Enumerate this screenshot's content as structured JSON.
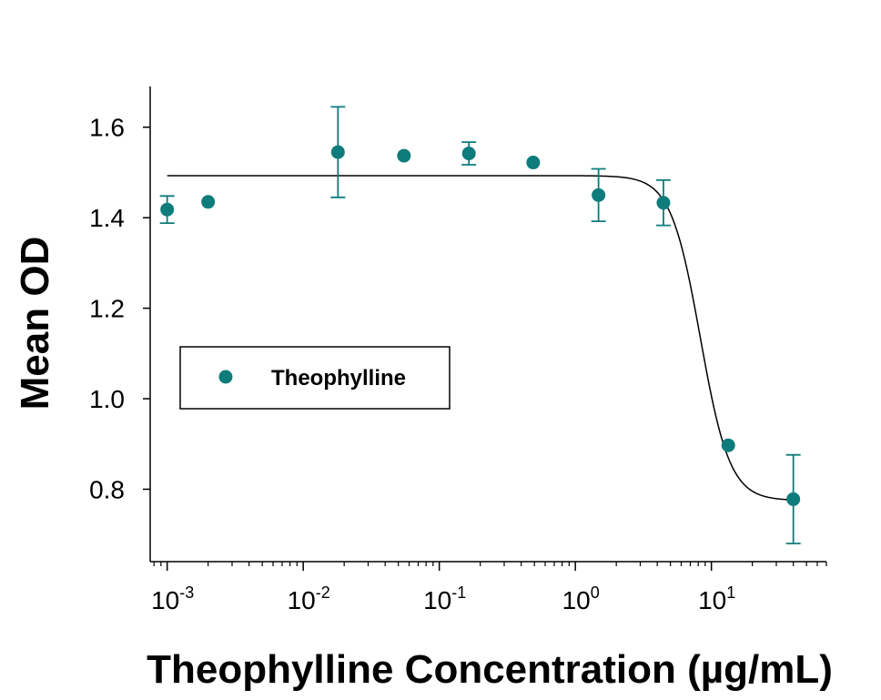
{
  "colors": {
    "series": "#0e7c7b",
    "axis": "#000000",
    "fit_line": "#000000"
  },
  "chart_data": {
    "type": "scatter",
    "xlabel": "Theophylline Concentration (µg/mL)",
    "ylabel": "Mean OD",
    "x_scale": "log",
    "x_ticks": [
      {
        "value": 0.001,
        "base": "10",
        "exp": "-3"
      },
      {
        "value": 0.01,
        "base": "10",
        "exp": "-2"
      },
      {
        "value": 0.1,
        "base": "10",
        "exp": "-1"
      },
      {
        "value": 1,
        "base": "10",
        "exp": "0"
      },
      {
        "value": 10,
        "base": "10",
        "exp": "1"
      }
    ],
    "xlim": [
      0.00075,
      70
    ],
    "ylim": [
      0.64,
      1.69
    ],
    "y_ticks": [
      "0.8",
      "1.0",
      "1.2",
      "1.4",
      "1.6"
    ],
    "legend": {
      "position": "center-left",
      "entries": [
        "Theophylline"
      ]
    },
    "series": [
      {
        "name": "Theophylline",
        "points": [
          {
            "x": 0.001,
            "y": 1.418,
            "err": 0.03
          },
          {
            "x": 0.002,
            "y": 1.435,
            "err": 0
          },
          {
            "x": 0.018,
            "y": 1.545,
            "err": 0.1
          },
          {
            "x": 0.055,
            "y": 1.537,
            "err": 0
          },
          {
            "x": 0.165,
            "y": 1.542,
            "err": 0.025
          },
          {
            "x": 0.49,
            "y": 1.522,
            "err": 0
          },
          {
            "x": 1.48,
            "y": 1.45,
            "err": 0.058
          },
          {
            "x": 4.44,
            "y": 1.433,
            "err": 0.05
          },
          {
            "x": 13.3,
            "y": 0.897,
            "err": 0
          },
          {
            "x": 40,
            "y": 0.778,
            "err": 0.098
          }
        ]
      }
    ],
    "fit": {
      "top": 1.493,
      "bottom": 0.775,
      "ec50": 8.3,
      "hill": 4.0,
      "x_range": [
        0.001,
        40
      ]
    }
  }
}
